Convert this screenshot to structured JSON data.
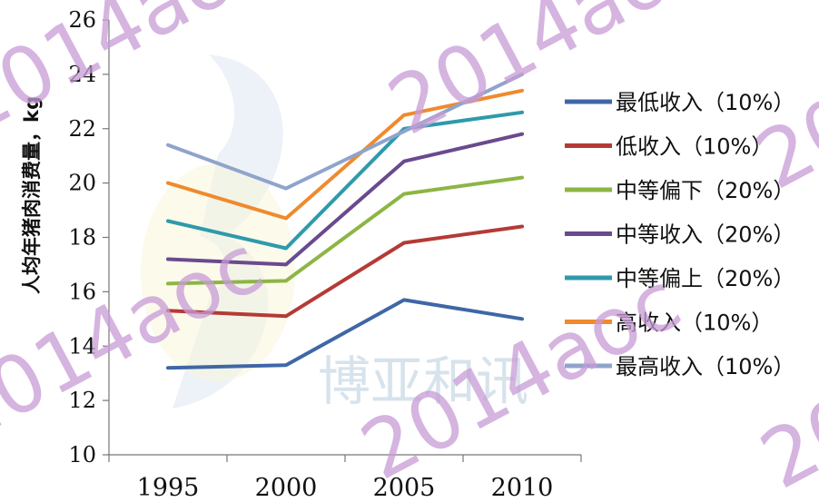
{
  "chart_data": {
    "type": "line",
    "title": "",
    "xlabel": "",
    "ylabel": "人均年猪肉消费量，kg",
    "ylim": [
      10,
      26
    ],
    "yticks": [
      10,
      12,
      14,
      16,
      18,
      20,
      22,
      24,
      26
    ],
    "categories": [
      "1995",
      "2000",
      "2005",
      "2010"
    ],
    "legend_position": "right",
    "grid": false,
    "series": [
      {
        "name": "最低收入（10%）",
        "color": "#3f67a6",
        "values": [
          13.2,
          13.3,
          15.7,
          15.0
        ]
      },
      {
        "name": "低收入（10%）",
        "color": "#b53a35",
        "values": [
          15.3,
          15.1,
          17.8,
          18.4
        ]
      },
      {
        "name": "中等偏下（20%）",
        "color": "#8db545",
        "values": [
          16.3,
          16.4,
          19.6,
          20.2
        ]
      },
      {
        "name": "中等收入（20%）",
        "color": "#6a4a8e",
        "values": [
          17.2,
          17.0,
          20.8,
          21.8
        ]
      },
      {
        "name": "中等偏上（20%）",
        "color": "#2e9aab",
        "values": [
          18.6,
          17.6,
          22.0,
          22.6
        ]
      },
      {
        "name": "高收入（10%）",
        "color": "#ef8a2e",
        "values": [
          20.0,
          18.7,
          22.5,
          23.4
        ]
      },
      {
        "name": "最高收入（10%）",
        "color": "#8fa4cc",
        "values": [
          21.4,
          19.8,
          21.9,
          24.0
        ]
      }
    ]
  },
  "watermark": {
    "text": "2014aoc",
    "brand": "博亚和讯"
  }
}
